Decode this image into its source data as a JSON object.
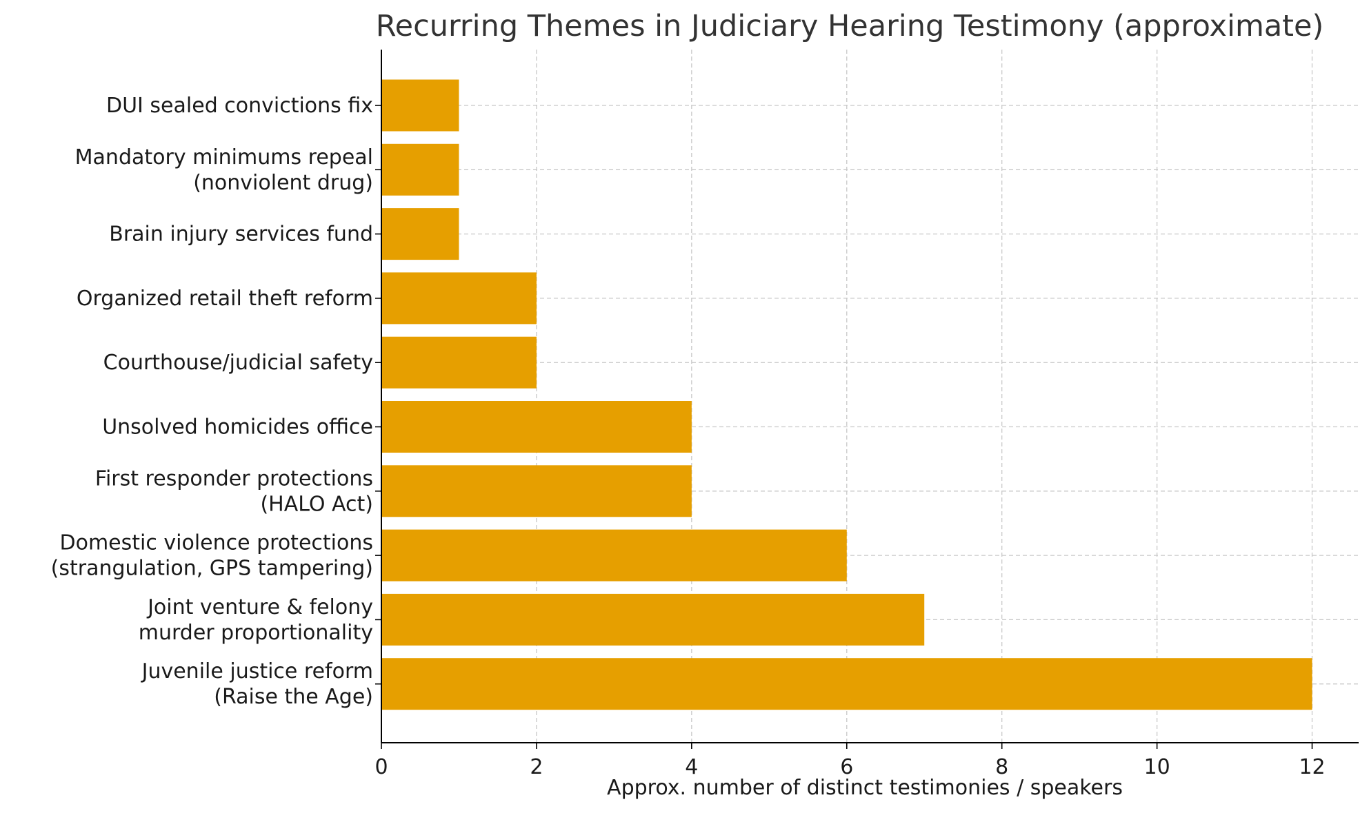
{
  "chart_data": {
    "type": "bar",
    "orientation": "horizontal",
    "title": "Recurring Themes in Judiciary Hearing Testimony (approximate)",
    "xlabel": "Approx. number of distinct testimonies / speakers",
    "ylabel": "",
    "categories": [
      [
        "Juvenile justice reform",
        "(Raise the Age)"
      ],
      [
        "Joint venture & felony",
        "murder proportionality"
      ],
      [
        "Domestic violence protections",
        "(strangulation, GPS tampering)"
      ],
      [
        "First responder protections",
        "(HALO Act)"
      ],
      [
        "Unsolved homicides office"
      ],
      [
        "Courthouse/judicial safety"
      ],
      [
        "Organized retail theft reform"
      ],
      [
        "Brain injury services fund"
      ],
      [
        "Mandatory minimums repeal",
        "(nonviolent drug)"
      ],
      [
        "DUI sealed convictions fix"
      ]
    ],
    "values": [
      12,
      7,
      6,
      4,
      4,
      2,
      2,
      1,
      1,
      1
    ],
    "xlim": [
      0,
      12.6
    ],
    "xticks": [
      0,
      2,
      4,
      6,
      8,
      10,
      12
    ],
    "grid": true,
    "colors": {
      "bar": "#E69F00",
      "grid": "#c8c8c8",
      "axis": "#000000"
    }
  }
}
